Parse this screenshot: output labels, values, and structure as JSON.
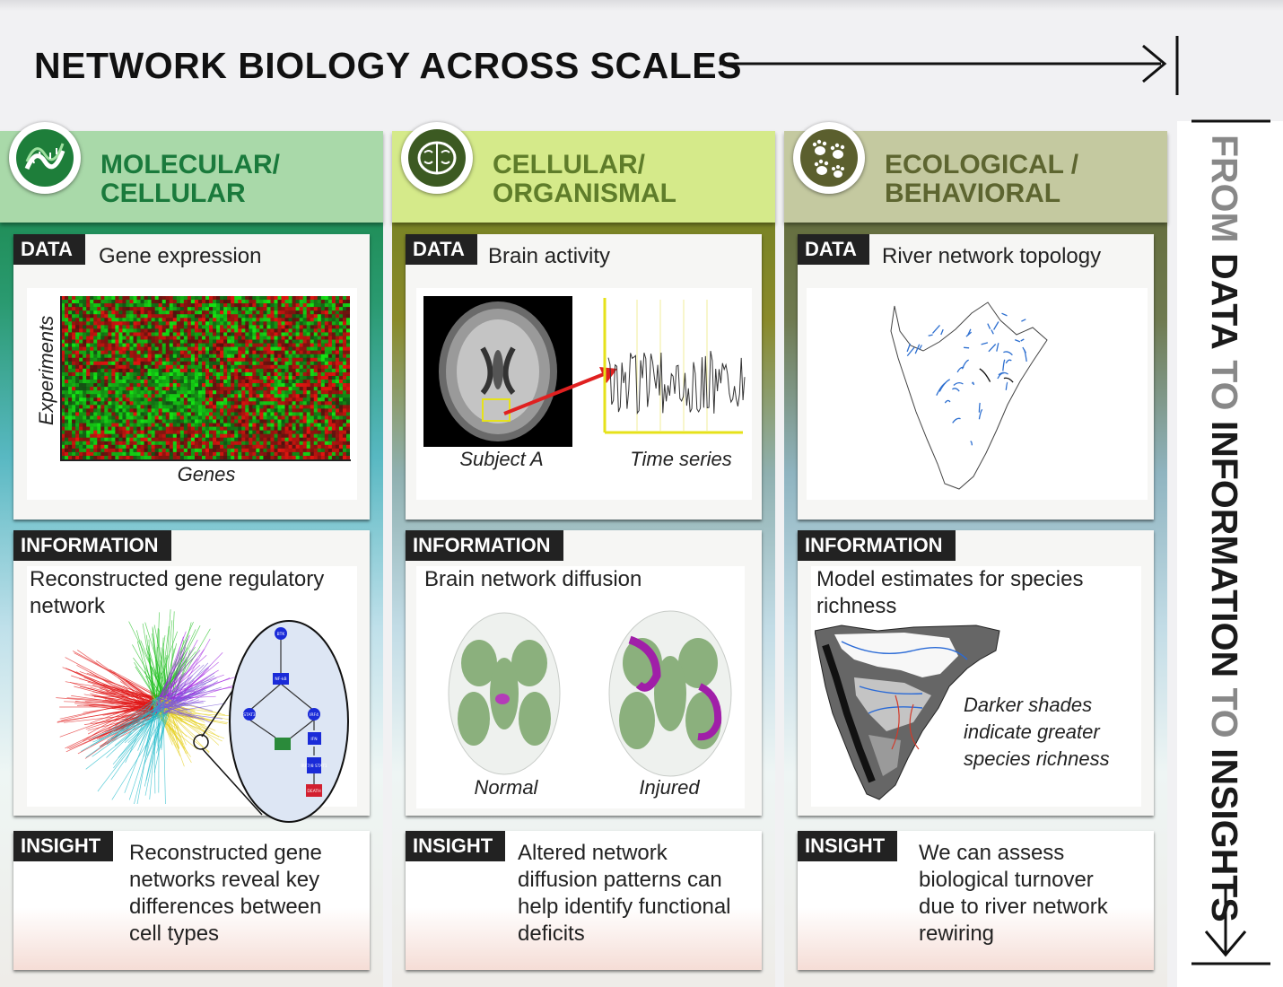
{
  "title": "NETWORK BIOLOGY ACROSS SCALES",
  "side_label": {
    "p1": "FROM ",
    "p2": "DATA",
    "p3": " TO ",
    "p4": "INFORMATION",
    "p5": " TO ",
    "p6": "INSIGHTS"
  },
  "tags": {
    "data": "DATA",
    "information": "INFORMATION",
    "insight": "INSIGHT"
  },
  "columns": [
    {
      "title_line1": "MOLECULAR/",
      "title_line2": "CELLULAR",
      "icon": "dna-icon",
      "data_text": "Gene expression",
      "data_ylabel": "Experiments",
      "data_xlabel": "Genes",
      "info_line1": "Reconstructed gene regulatory",
      "info_line2": "network",
      "nodes": [
        "BTK",
        "NF-kB",
        "STAT3",
        "IRF4",
        "IFN",
        "IRF7/8 STAT1",
        "DEATH"
      ],
      "insight": [
        "Reconstructed gene",
        "networks reveal key",
        "differences between",
        "cell types"
      ]
    },
    {
      "title_line1": "CELLULAR/",
      "title_line2": "ORGANISMAL",
      "icon": "brain-icon",
      "data_text": "Brain activity",
      "label_a": "Subject A",
      "label_b": "Time series",
      "info_line1": "Brain network diffusion",
      "label_c": "Normal",
      "label_d": "Injured",
      "insight": [
        "Altered network",
        "diffusion patterns can",
        "help identify functional",
        "deficits"
      ]
    },
    {
      "title_line1": "ECOLOGICAL /",
      "title_line2": "BEHAVIORAL",
      "icon": "paw-prints-icon",
      "data_text": "River network topology",
      "info_line1": "Model estimates for species",
      "info_line2": "richness",
      "note": [
        "Darker shades",
        "indicate greater",
        "species richness"
      ],
      "insight": [
        "We can assess",
        "biological turnover",
        "due to river network",
        "rewiring"
      ]
    }
  ],
  "colors": {
    "col1": "#1a7a3c",
    "col2": "#5f7d2a",
    "col3": "#5d6530",
    "accent_dark": "#3c5a22"
  }
}
